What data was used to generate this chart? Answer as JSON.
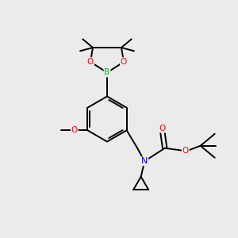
{
  "bg_color": "#ebebeb",
  "bond_color": "#000000",
  "atom_colors": {
    "B": "#00bb00",
    "O": "#ff0000",
    "N": "#0000ee",
    "C": "#000000"
  },
  "lw": 1.4,
  "figsize": [
    3.0,
    3.0
  ],
  "dpi": 100
}
